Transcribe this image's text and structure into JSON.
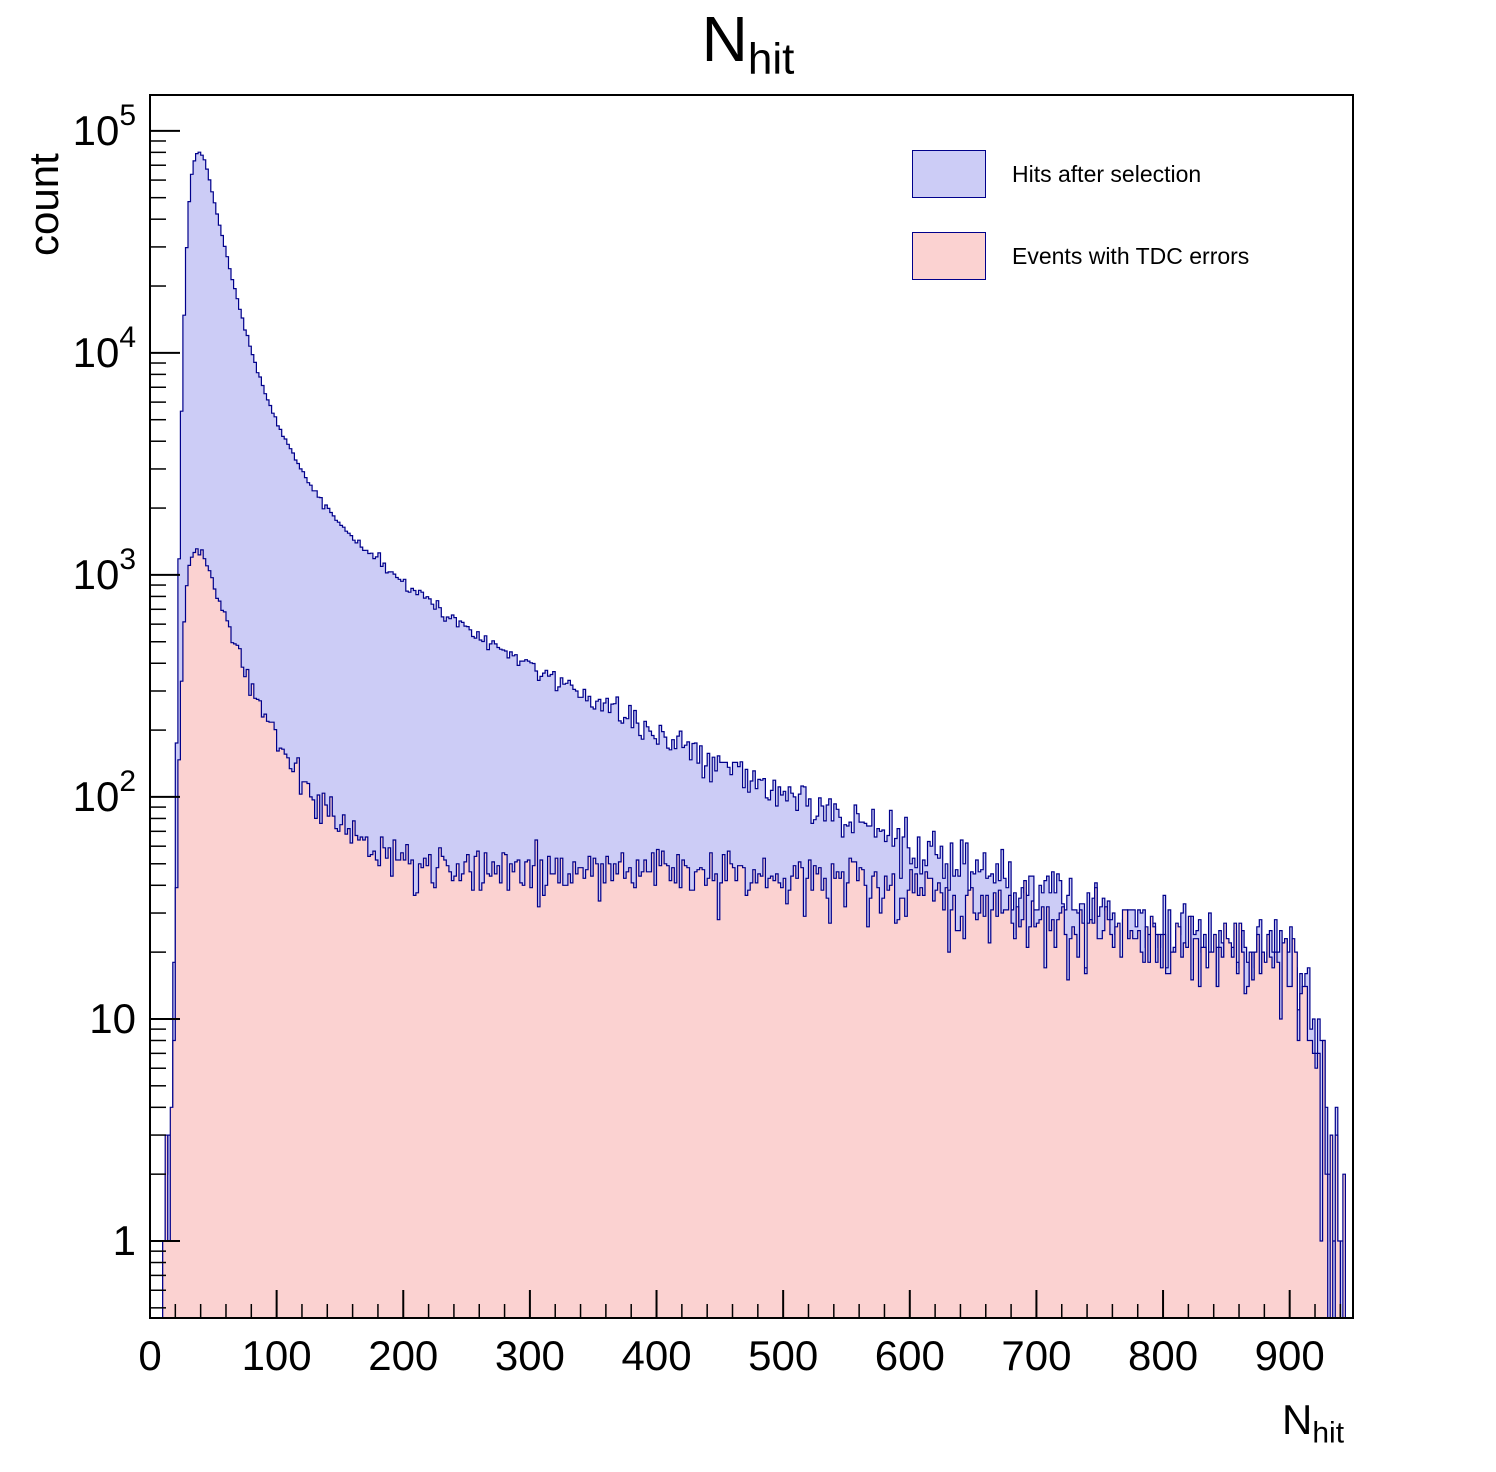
{
  "page": {
    "background": "#ffffff"
  },
  "chart_data": {
    "type": "histogram",
    "title_main": "N",
    "title_sub": "hit",
    "xlabel_main": "N",
    "xlabel_sub": "hit",
    "ylabel": "count",
    "x_range": [
      0,
      950
    ],
    "y_scale": "log",
    "y_range": [
      0.45,
      145000
    ],
    "bin_width": 2,
    "x_ticks": [
      0,
      100,
      200,
      300,
      400,
      500,
      600,
      700,
      800,
      900
    ],
    "x_minor_step": 20,
    "y_ticks": [
      {
        "value": 1,
        "label": "1",
        "exp": ""
      },
      {
        "value": 10,
        "label": "10",
        "exp": ""
      },
      {
        "value": 100,
        "label": "10",
        "exp": "2"
      },
      {
        "value": 1000,
        "label": "10",
        "exp": "3"
      },
      {
        "value": 10000,
        "label": "10",
        "exp": "4"
      },
      {
        "value": 100000,
        "label": "10",
        "exp": "5"
      }
    ],
    "grid": false,
    "legend_position": "top-right",
    "seed": 42,
    "frame_color": "#000000",
    "series": [
      {
        "name": "Hits after selection",
        "fill_color": "#ccccf6",
        "line_color": "#00008b",
        "noise": "poisson",
        "envelope": [
          [
            0,
            0
          ],
          [
            9,
            0
          ],
          [
            11,
            1
          ],
          [
            14,
            2
          ],
          [
            16,
            4
          ],
          [
            18,
            12
          ],
          [
            20,
            60
          ],
          [
            22,
            500
          ],
          [
            24,
            3000
          ],
          [
            26,
            10000
          ],
          [
            28,
            22000
          ],
          [
            30,
            40000
          ],
          [
            32,
            58000
          ],
          [
            34,
            70000
          ],
          [
            37,
            79000
          ],
          [
            40,
            80000
          ],
          [
            43,
            74000
          ],
          [
            46,
            64000
          ],
          [
            50,
            50000
          ],
          [
            54,
            40000
          ],
          [
            58,
            32000
          ],
          [
            62,
            25500
          ],
          [
            66,
            20500
          ],
          [
            70,
            16500
          ],
          [
            75,
            12800
          ],
          [
            80,
            10200
          ],
          [
            85,
            8300
          ],
          [
            90,
            6900
          ],
          [
            95,
            5800
          ],
          [
            100,
            4900
          ],
          [
            110,
            3700
          ],
          [
            120,
            2900
          ],
          [
            130,
            2400
          ],
          [
            140,
            2000
          ],
          [
            150,
            1700
          ],
          [
            160,
            1480
          ],
          [
            170,
            1300
          ],
          [
            180,
            1150
          ],
          [
            190,
            1020
          ],
          [
            200,
            920
          ],
          [
            215,
            800
          ],
          [
            230,
            690
          ],
          [
            245,
            600
          ],
          [
            260,
            530
          ],
          [
            275,
            470
          ],
          [
            290,
            420
          ],
          [
            305,
            375
          ],
          [
            320,
            335
          ],
          [
            335,
            300
          ],
          [
            350,
            270
          ],
          [
            365,
            245
          ],
          [
            380,
            222
          ],
          [
            400,
            196
          ],
          [
            420,
            172
          ],
          [
            440,
            152
          ],
          [
            460,
            134
          ],
          [
            480,
            118
          ],
          [
            500,
            105
          ],
          [
            520,
            94
          ],
          [
            540,
            85
          ],
          [
            560,
            77
          ],
          [
            580,
            69
          ],
          [
            600,
            62
          ],
          [
            620,
            56
          ],
          [
            640,
            51
          ],
          [
            660,
            46
          ],
          [
            680,
            42
          ],
          [
            700,
            38
          ],
          [
            720,
            35
          ],
          [
            740,
            32
          ],
          [
            760,
            30
          ],
          [
            780,
            28
          ],
          [
            800,
            26
          ],
          [
            820,
            24
          ],
          [
            840,
            23
          ],
          [
            860,
            21
          ],
          [
            880,
            20
          ],
          [
            900,
            19
          ],
          [
            910,
            16
          ],
          [
            920,
            10
          ],
          [
            928,
            4
          ],
          [
            934,
            2
          ],
          [
            940,
            1
          ],
          [
            944,
            0.5
          ],
          [
            947,
            0
          ]
        ]
      },
      {
        "name": "Events with TDC errors",
        "fill_color": "#fbd2d1",
        "line_color": "#00008b",
        "noise": "poisson",
        "envelope": [
          [
            0,
            0
          ],
          [
            9,
            0
          ],
          [
            11,
            0.7
          ],
          [
            14,
            1
          ],
          [
            16,
            2
          ],
          [
            18,
            5
          ],
          [
            20,
            20
          ],
          [
            22,
            90
          ],
          [
            24,
            250
          ],
          [
            26,
            500
          ],
          [
            28,
            780
          ],
          [
            30,
            1000
          ],
          [
            32,
            1150
          ],
          [
            34,
            1250
          ],
          [
            37,
            1300
          ],
          [
            40,
            1270
          ],
          [
            43,
            1180
          ],
          [
            46,
            1060
          ],
          [
            50,
            920
          ],
          [
            54,
            790
          ],
          [
            58,
            680
          ],
          [
            62,
            590
          ],
          [
            66,
            510
          ],
          [
            70,
            445
          ],
          [
            75,
            375
          ],
          [
            80,
            320
          ],
          [
            85,
            275
          ],
          [
            90,
            240
          ],
          [
            95,
            210
          ],
          [
            100,
            185
          ],
          [
            110,
            148
          ],
          [
            120,
            120
          ],
          [
            130,
            100
          ],
          [
            140,
            86
          ],
          [
            150,
            76
          ],
          [
            160,
            68
          ],
          [
            170,
            63
          ],
          [
            180,
            59
          ],
          [
            190,
            56
          ],
          [
            200,
            54
          ],
          [
            215,
            52
          ],
          [
            230,
            50
          ],
          [
            245,
            49
          ],
          [
            260,
            48
          ],
          [
            275,
            47
          ],
          [
            290,
            47
          ],
          [
            305,
            46
          ],
          [
            320,
            46
          ],
          [
            335,
            46
          ],
          [
            350,
            46
          ],
          [
            365,
            46
          ],
          [
            380,
            46
          ],
          [
            400,
            46
          ],
          [
            420,
            46
          ],
          [
            440,
            45
          ],
          [
            460,
            45
          ],
          [
            480,
            44
          ],
          [
            500,
            43
          ],
          [
            520,
            42
          ],
          [
            540,
            41
          ],
          [
            560,
            40
          ],
          [
            580,
            38
          ],
          [
            600,
            37
          ],
          [
            620,
            35
          ],
          [
            640,
            33
          ],
          [
            660,
            31
          ],
          [
            680,
            29
          ],
          [
            700,
            28
          ],
          [
            720,
            26
          ],
          [
            740,
            25
          ],
          [
            760,
            24
          ],
          [
            780,
            23
          ],
          [
            800,
            22
          ],
          [
            820,
            21
          ],
          [
            840,
            20
          ],
          [
            860,
            19
          ],
          [
            880,
            18
          ],
          [
            900,
            17
          ],
          [
            910,
            14
          ],
          [
            920,
            8
          ],
          [
            928,
            3
          ],
          [
            934,
            2
          ],
          [
            940,
            1.5
          ],
          [
            944,
            1
          ],
          [
            947,
            0
          ]
        ]
      }
    ]
  }
}
